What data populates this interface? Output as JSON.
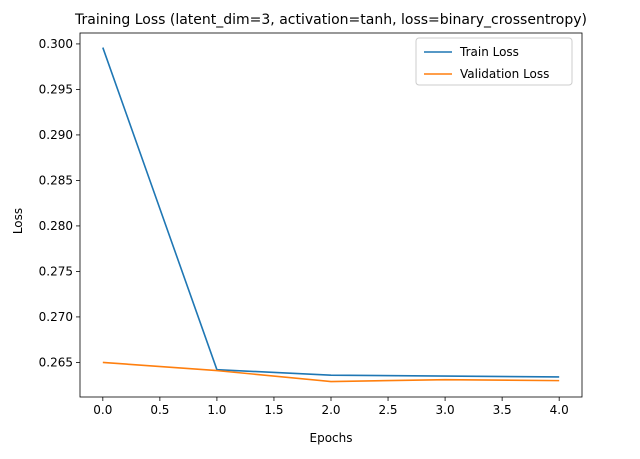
{
  "chart_data": {
    "type": "line",
    "title": "Training Loss (latent_dim=3, activation=tanh, loss=binary_crossentropy)",
    "xlabel": "Epochs",
    "ylabel": "Loss",
    "x": [
      0,
      1,
      2,
      3,
      4
    ],
    "xlim": [
      -0.2,
      4.2
    ],
    "ylim": [
      0.2612,
      0.3012
    ],
    "xticks": [
      0.0,
      0.5,
      1.0,
      1.5,
      2.0,
      2.5,
      3.0,
      3.5,
      4.0
    ],
    "xtick_labels": [
      "0.0",
      "0.5",
      "1.0",
      "1.5",
      "2.0",
      "2.5",
      "3.0",
      "3.5",
      "4.0"
    ],
    "yticks": [
      0.265,
      0.27,
      0.275,
      0.28,
      0.285,
      0.29,
      0.295,
      0.3
    ],
    "ytick_labels": [
      "0.265",
      "0.270",
      "0.275",
      "0.280",
      "0.285",
      "0.290",
      "0.295",
      "0.300"
    ],
    "grid": false,
    "legend_position": "top-right",
    "series": [
      {
        "name": "Train Loss",
        "color": "#1f77b4",
        "values": [
          0.2996,
          0.2642,
          0.2636,
          0.2635,
          0.2634
        ]
      },
      {
        "name": "Validation Loss",
        "color": "#ff7f0e",
        "values": [
          0.265,
          0.2641,
          0.2629,
          0.2631,
          0.263
        ]
      }
    ]
  }
}
